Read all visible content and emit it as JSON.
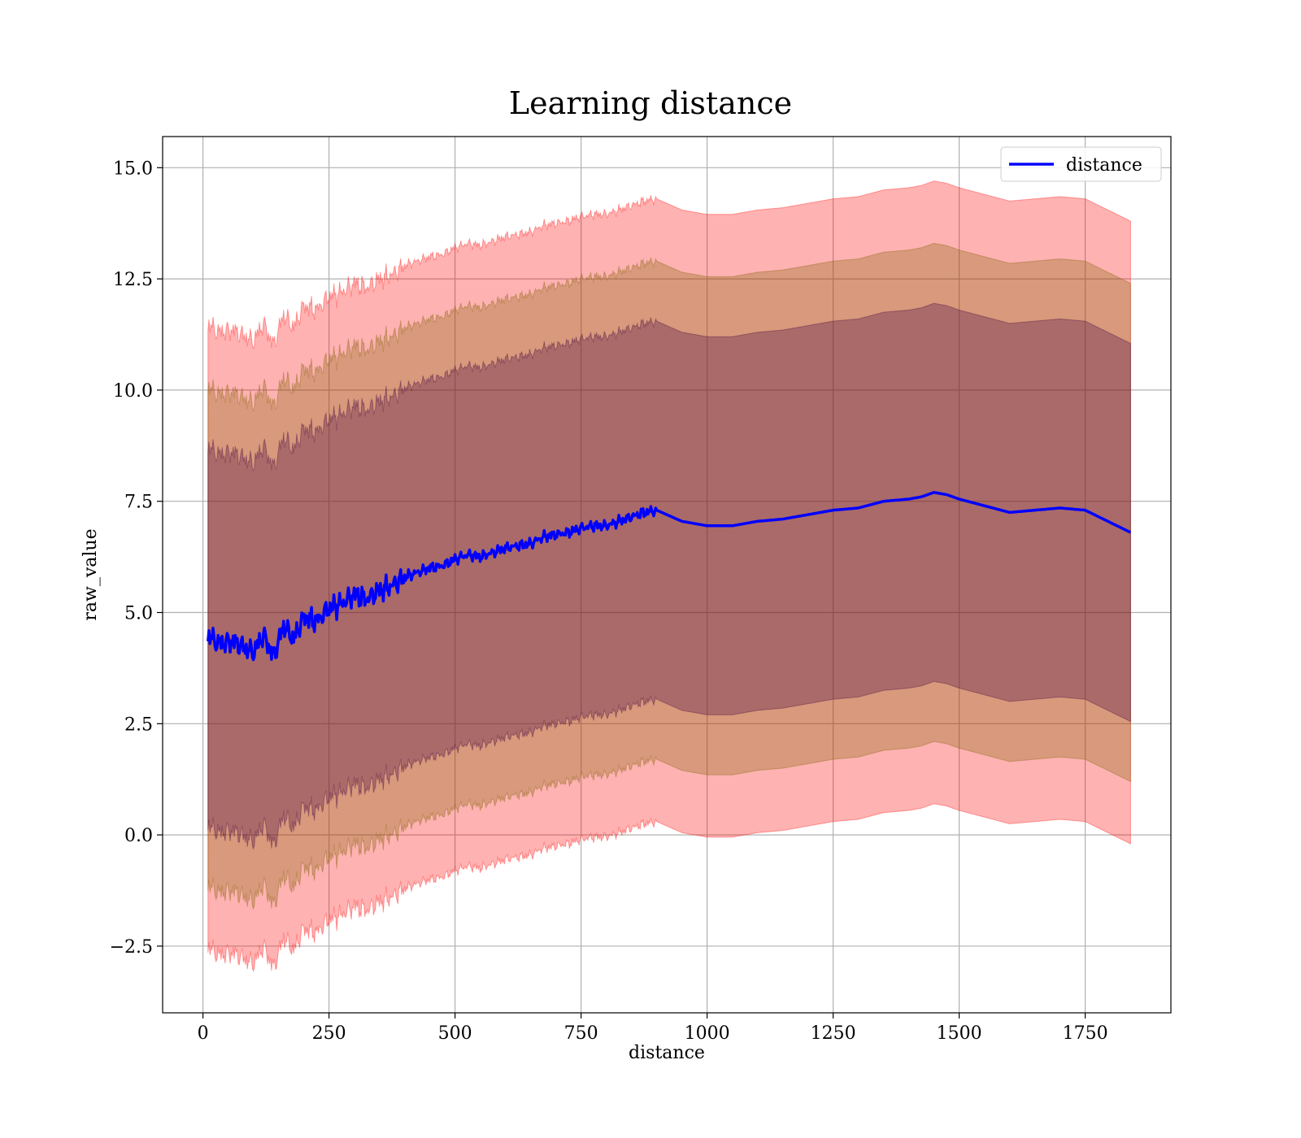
{
  "chart_data": {
    "type": "area",
    "title": "Learning distance",
    "xlabel": "distance",
    "ylabel": "raw_value",
    "xlim": [
      -80,
      1920
    ],
    "ylim": [
      -4.0,
      15.7
    ],
    "xticks": [
      0,
      250,
      500,
      750,
      1000,
      1250,
      1500,
      1750
    ],
    "xtick_labels": [
      "0",
      "250",
      "500",
      "750",
      "1000",
      "1250",
      "1500",
      "1750"
    ],
    "yticks": [
      -2.5,
      0.0,
      2.5,
      5.0,
      7.5,
      10.0,
      12.5,
      15.0
    ],
    "ytick_labels": [
      "−2.5",
      "0.0",
      "2.5",
      "5.0",
      "7.5",
      "10.0",
      "12.5",
      "15.0"
    ],
    "grid": true,
    "legend_position": "top-right",
    "series": [
      {
        "name": "distance",
        "color": "#0000ff",
        "x": [
          10,
          30,
          60,
          100,
          120,
          140,
          160,
          180,
          200,
          225,
          250,
          275,
          300,
          325,
          350,
          375,
          400,
          425,
          450,
          475,
          500,
          525,
          550,
          575,
          600,
          625,
          650,
          675,
          700,
          725,
          750,
          775,
          800,
          825,
          850,
          875,
          900,
          950,
          1000,
          1050,
          1100,
          1150,
          1200,
          1250,
          1300,
          1350,
          1400,
          1425,
          1450,
          1475,
          1500,
          1550,
          1600,
          1650,
          1700,
          1750,
          1840
        ],
        "values": [
          4.5,
          4.3,
          4.35,
          4.1,
          4.5,
          4.0,
          4.7,
          4.4,
          4.9,
          4.8,
          5.1,
          5.2,
          5.4,
          5.3,
          5.5,
          5.6,
          5.8,
          5.9,
          6.0,
          6.05,
          6.2,
          6.3,
          6.25,
          6.35,
          6.45,
          6.5,
          6.55,
          6.7,
          6.75,
          6.8,
          6.9,
          6.95,
          6.95,
          7.05,
          7.15,
          7.25,
          7.3,
          7.05,
          6.95,
          6.95,
          7.05,
          7.1,
          7.2,
          7.3,
          7.35,
          7.5,
          7.55,
          7.6,
          7.7,
          7.65,
          7.55,
          7.4,
          7.25,
          7.3,
          7.35,
          7.3,
          6.8
        ]
      }
    ],
    "bands": [
      {
        "color": "#ff0000",
        "sigma": 3,
        "offset": 7.0
      },
      {
        "color": "#7f6000",
        "sigma": 2,
        "offset": 5.6
      },
      {
        "color": "#3f0040",
        "sigma": 1,
        "offset": 4.25
      }
    ]
  }
}
